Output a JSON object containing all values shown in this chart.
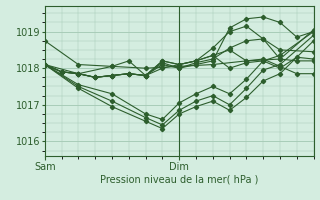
{
  "bg_color": "#d4ede0",
  "line_color": "#2d5e2d",
  "grid_color": "#a8ccb8",
  "xlabel": "Pression niveau de la mer( hPa )",
  "yticks": [
    1016,
    1017,
    1018,
    1019
  ],
  "ylim": [
    1015.6,
    1019.7
  ],
  "xlim": [
    0,
    48
  ],
  "xtick_pos": [
    0,
    24
  ],
  "xtick_labels": [
    "Sam",
    "Dim"
  ],
  "vline_x": 24,
  "series": [
    [
      0,
      1018.75,
      6,
      1018.1,
      12,
      1018.05,
      18,
      1018.0,
      24,
      1018.05,
      30,
      1018.1,
      36,
      1018.2,
      42,
      1018.25,
      48,
      1019.05
    ],
    [
      0,
      1018.1,
      3,
      1017.9,
      6,
      1017.85,
      9,
      1017.75,
      12,
      1017.8,
      15,
      1017.85,
      18,
      1017.8,
      21,
      1018.2,
      24,
      1018.1,
      27,
      1018.2,
      30,
      1018.35,
      33,
      1018.5,
      36,
      1018.2,
      39,
      1018.25,
      42,
      1018.05,
      45,
      1017.85,
      48,
      1017.85
    ],
    [
      0,
      1018.1,
      3,
      1017.9,
      6,
      1017.85,
      9,
      1017.75,
      12,
      1017.8,
      15,
      1017.85,
      18,
      1017.8,
      21,
      1018.2,
      24,
      1018.1,
      27,
      1018.2,
      30,
      1018.35,
      33,
      1018.0,
      36,
      1018.15,
      39,
      1018.2,
      42,
      1018.0,
      45,
      1018.3,
      48,
      1018.25
    ],
    [
      0,
      1018.1,
      3,
      1017.9,
      6,
      1017.85,
      9,
      1017.75,
      12,
      1017.8,
      15,
      1017.85,
      18,
      1017.8,
      21,
      1018.15,
      24,
      1018.0,
      27,
      1018.15,
      30,
      1018.25,
      33,
      1018.55,
      36,
      1018.75,
      39,
      1018.8,
      42,
      1018.25,
      45,
      1018.2,
      48,
      1018.2
    ],
    [
      0,
      1018.1,
      3,
      1017.9,
      6,
      1017.85,
      9,
      1017.75,
      12,
      1017.8,
      15,
      1017.85,
      18,
      1017.8,
      21,
      1018.1,
      24,
      1018.0,
      27,
      1018.1,
      30,
      1018.2,
      33,
      1019.1,
      36,
      1019.35,
      39,
      1019.4,
      42,
      1019.25,
      45,
      1018.85,
      48,
      1019.0
    ],
    [
      0,
      1018.1,
      6,
      1017.85,
      12,
      1018.05,
      15,
      1018.2,
      18,
      1017.8,
      21,
      1018.0,
      24,
      1018.1,
      27,
      1018.2,
      30,
      1018.55,
      33,
      1019.0,
      36,
      1019.15,
      39,
      1018.8,
      42,
      1018.5,
      48,
      1018.45
    ],
    [
      0,
      1018.1,
      6,
      1017.55,
      12,
      1017.3,
      18,
      1016.75,
      21,
      1016.6,
      24,
      1017.05,
      27,
      1017.3,
      30,
      1017.5,
      33,
      1017.3,
      36,
      1017.7,
      39,
      1018.2,
      42,
      1018.35,
      48,
      1019.0
    ],
    [
      0,
      1018.1,
      6,
      1017.5,
      12,
      1017.1,
      18,
      1016.65,
      21,
      1016.45,
      24,
      1016.85,
      27,
      1017.1,
      30,
      1017.25,
      33,
      1017.0,
      36,
      1017.45,
      39,
      1017.95,
      42,
      1018.1,
      48,
      1018.9
    ],
    [
      0,
      1018.1,
      6,
      1017.45,
      12,
      1016.95,
      18,
      1016.55,
      21,
      1016.35,
      24,
      1016.75,
      27,
      1016.95,
      30,
      1017.1,
      33,
      1016.85,
      36,
      1017.2,
      39,
      1017.65,
      42,
      1017.85,
      48,
      1018.75
    ]
  ]
}
